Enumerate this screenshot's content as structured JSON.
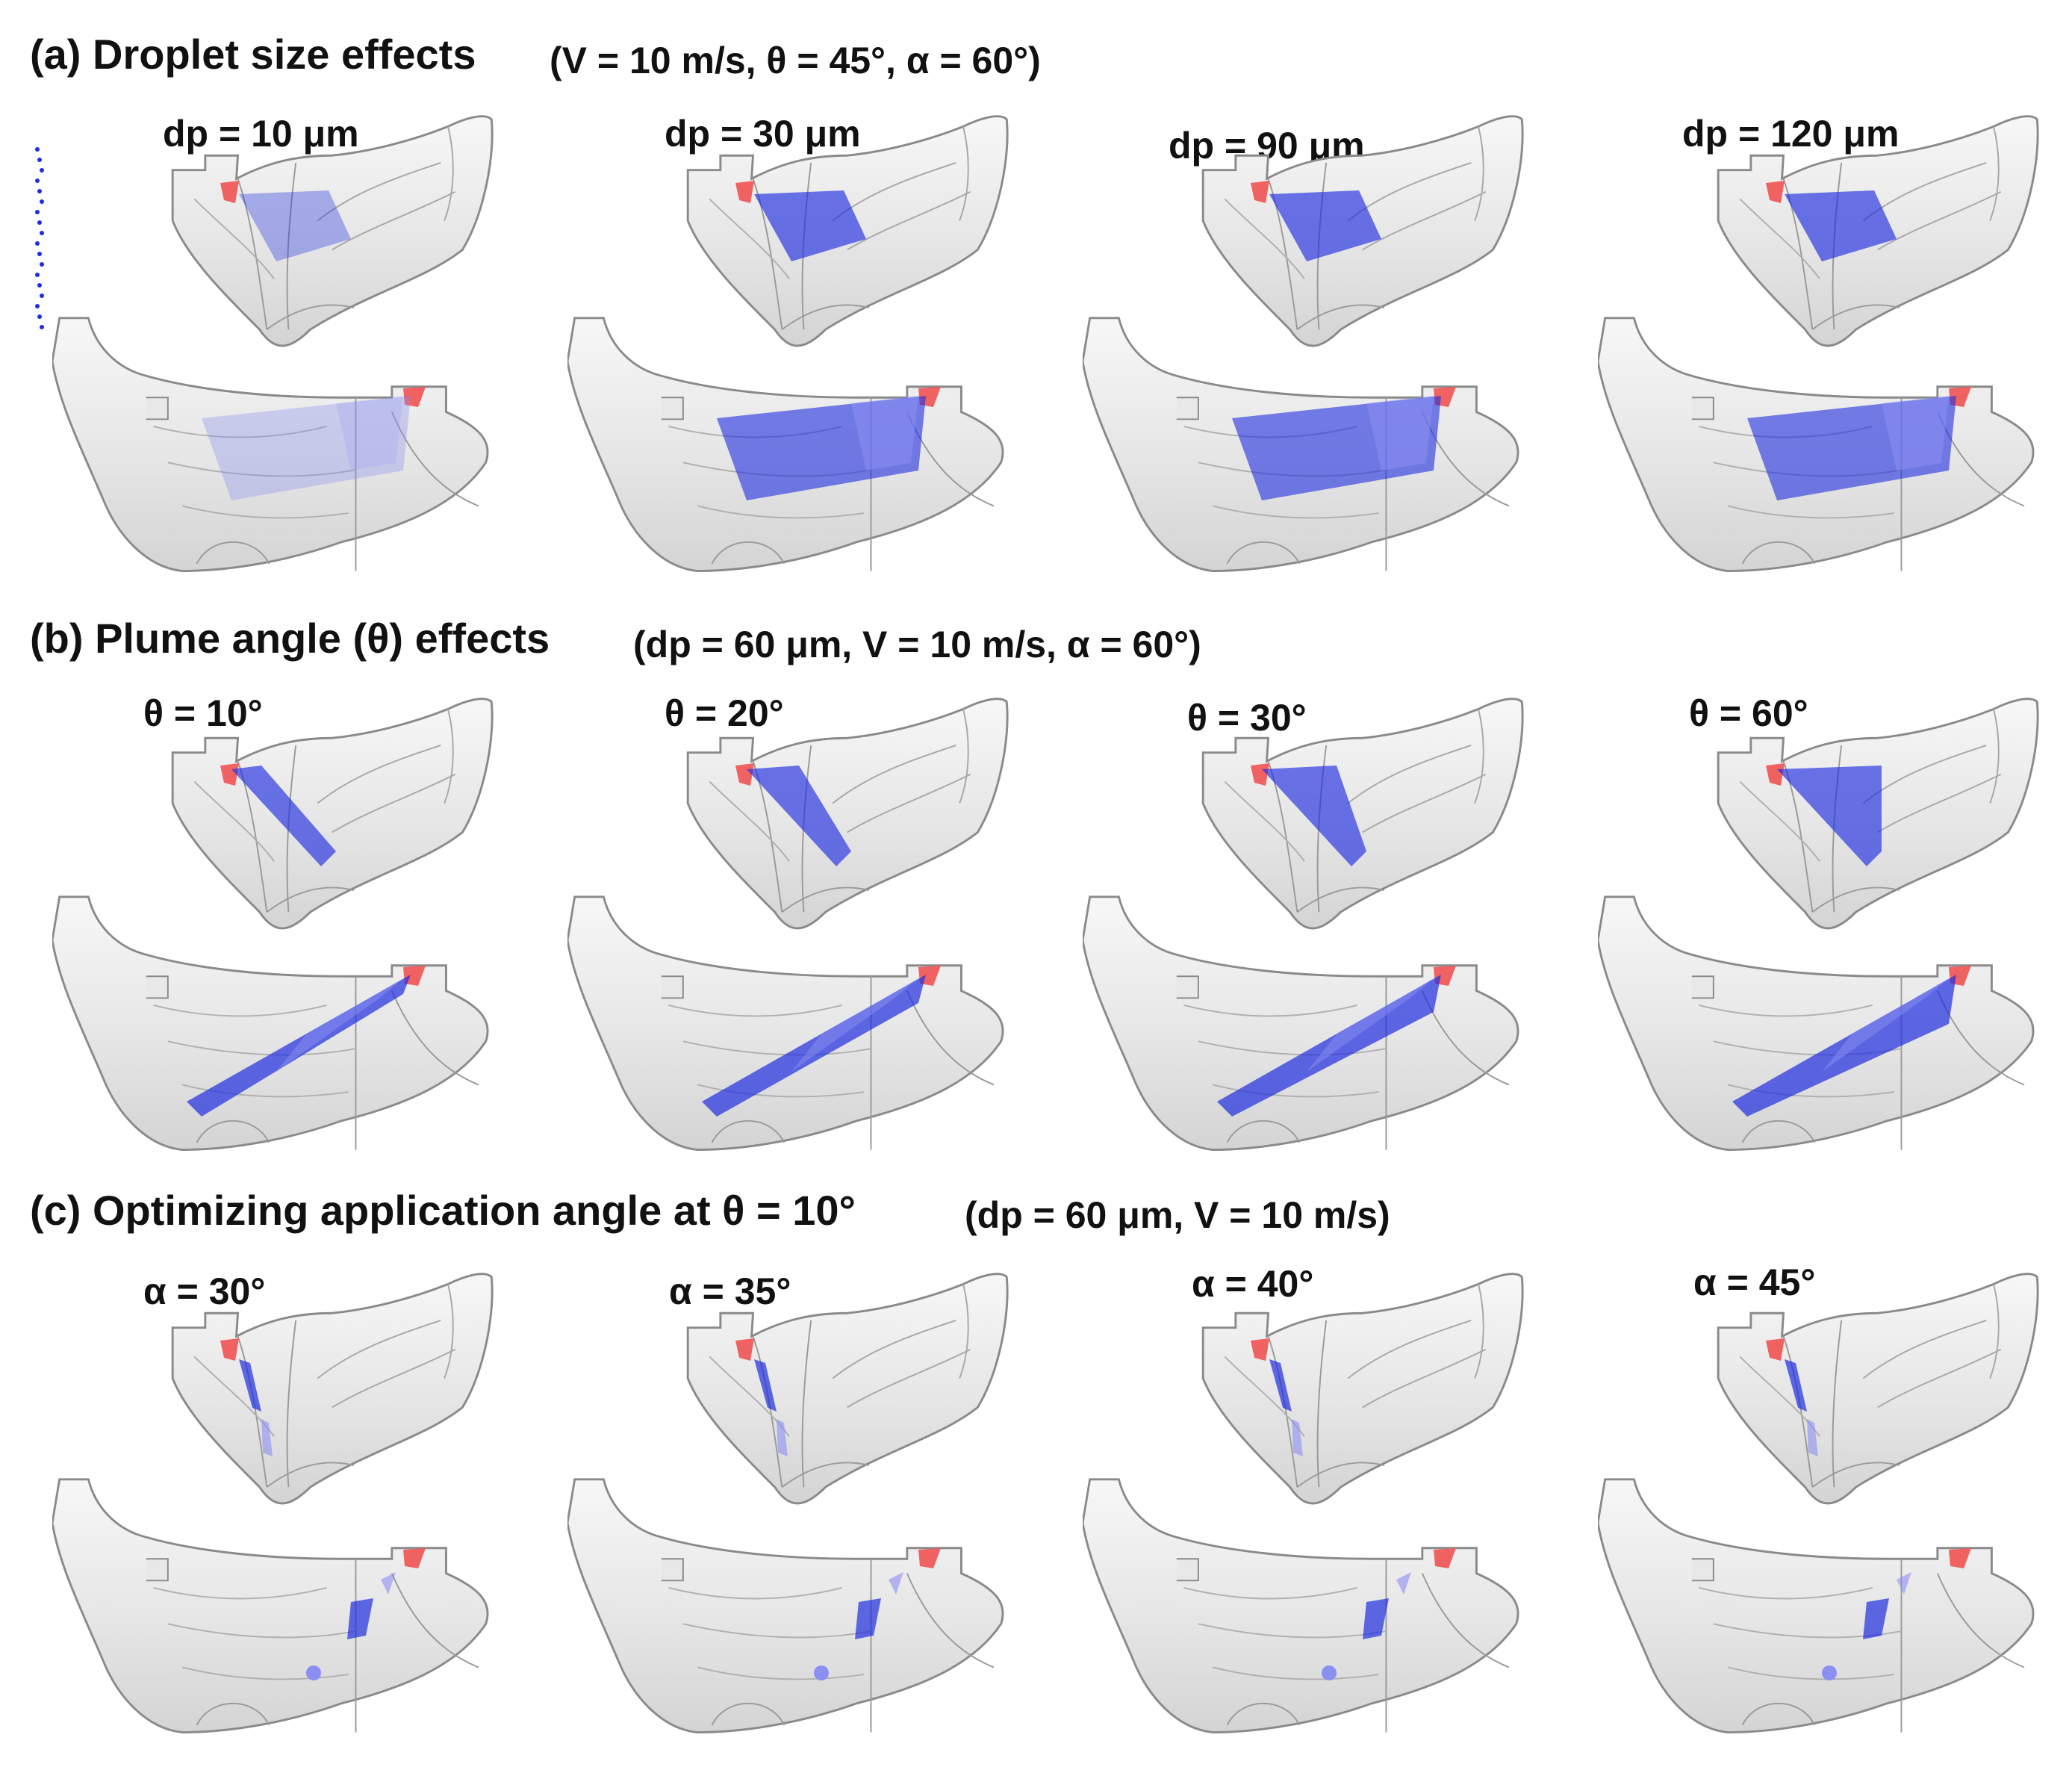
{
  "sections": [
    {
      "id": "a",
      "title": "(a) Droplet size effects",
      "params": "(V = 10 m/s, θ = 45°, α = 60°)",
      "panels": [
        {
          "label": "dp = 10 μm",
          "variant": "dp",
          "value": "10"
        },
        {
          "label": "dp = 30 μm",
          "variant": "dp",
          "value": "30"
        },
        {
          "label": "dp = 90 μm",
          "variant": "dp",
          "value": "90"
        },
        {
          "label": "dp = 120 μm",
          "variant": "dp",
          "value": "120"
        }
      ]
    },
    {
      "id": "b",
      "title": "(b) Plume angle (θ) effects",
      "params": "(dp = 60 μm, V = 10 m/s, α = 60°)",
      "panels": [
        {
          "label": "θ = 10°"
        },
        {
          "label": "θ = 20°"
        },
        {
          "label": "θ = 30°"
        },
        {
          "label": "θ = 60°"
        }
      ]
    },
    {
      "id": "c",
      "title": "(c) Optimizing application angle at θ = 10°",
      "params": "(dp = 60 μm, V = 10 m/s)",
      "panels": [
        {
          "label": "α = 30°"
        },
        {
          "label": "α = 35°"
        },
        {
          "label": "α = 40°"
        },
        {
          "label": "α = 45°"
        }
      ]
    }
  ],
  "colors": {
    "deposition_dark": "#1f2de0",
    "deposition_light": "#8a8ff2",
    "nozzle": "#f05a5a",
    "cavity_fill": "#eeeeee",
    "cavity_stroke": "#8a8a8a"
  }
}
